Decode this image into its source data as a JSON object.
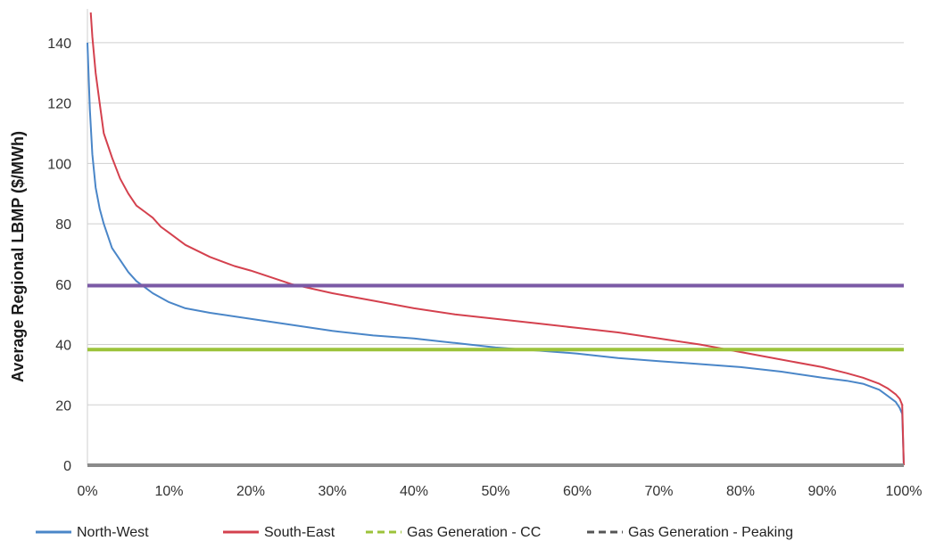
{
  "chart_data": {
    "type": "line",
    "ylabel": "Average Regional LBMP ($/MWh)",
    "xlabel": "",
    "xlim": [
      0,
      100
    ],
    "ylim": [
      0,
      150
    ],
    "x_ticks": [
      "0%",
      "10%",
      "20%",
      "30%",
      "40%",
      "50%",
      "60%",
      "70%",
      "80%",
      "90%",
      "100%"
    ],
    "y_ticks": [
      "0",
      "20",
      "40",
      "60",
      "80",
      "100",
      "120",
      "140"
    ],
    "grid": "horizontal",
    "legend_position": "bottom",
    "series": [
      {
        "name": "North-West",
        "color": "#4a86c8",
        "dash": "solid",
        "x": [
          0,
          0.3,
          0.6,
          1,
          1.5,
          2,
          3,
          4,
          5,
          6,
          7,
          8,
          10,
          12,
          15,
          20,
          25,
          30,
          35,
          40,
          45,
          50,
          55,
          60,
          65,
          70,
          75,
          80,
          85,
          90,
          93,
          95,
          97,
          98,
          99,
          99.5,
          99.8,
          100
        ],
        "y": [
          140,
          118,
          103,
          92,
          85,
          80,
          72,
          68,
          64,
          61,
          59,
          57,
          54,
          52,
          50.5,
          48.5,
          46.5,
          44.5,
          43,
          42,
          40.5,
          39,
          38,
          37,
          35.5,
          34.5,
          33.5,
          32.5,
          31,
          29,
          28,
          27,
          25,
          23,
          21,
          19,
          17,
          0
        ]
      },
      {
        "name": "South-East",
        "color": "#d4414e",
        "dash": "solid",
        "x": [
          0.4,
          0.6,
          1,
          1.5,
          2,
          3,
          4,
          5,
          6,
          7,
          8,
          9,
          10,
          12,
          15,
          18,
          20,
          25,
          30,
          35,
          40,
          45,
          50,
          55,
          60,
          65,
          70,
          75,
          80,
          85,
          90,
          93,
          95,
          97,
          98,
          99,
          99.5,
          99.8,
          100
        ],
        "y": [
          150,
          142,
          130,
          120,
          110,
          102,
          95,
          90,
          86,
          84,
          82,
          79,
          77,
          73,
          69,
          66,
          64.5,
          60,
          57,
          54.5,
          52,
          50,
          48.5,
          47,
          45.5,
          44,
          42,
          40,
          37.5,
          35,
          32.5,
          30.5,
          29,
          27,
          25.5,
          23.5,
          22,
          20,
          0
        ]
      },
      {
        "name": "Gas Generation - CC",
        "color": "#9cc33a",
        "dash": "dashed",
        "x": [
          0,
          100
        ],
        "y": [
          38.3,
          38.3
        ]
      },
      {
        "name": "Gas Generation - Peaking",
        "color": "#7b5aa6",
        "dash": "dashed",
        "x": [
          0,
          100
        ],
        "y": [
          59.5,
          59.5
        ]
      },
      {
        "name": "",
        "color": "#8a8a8a",
        "dash": "solid",
        "x": [
          0,
          100
        ],
        "y": [
          0,
          0
        ]
      }
    ],
    "legend": [
      {
        "label": "North-West",
        "color": "#4a86c8",
        "dash": "solid"
      },
      {
        "label": "South-East",
        "color": "#d4414e",
        "dash": "solid"
      },
      {
        "label": "Gas Generation - CC",
        "color": "#9cc33a",
        "dash": "dashed"
      },
      {
        "label": "Gas Generation - Peaking",
        "color": "#555555",
        "dash": "dashed"
      }
    ]
  }
}
